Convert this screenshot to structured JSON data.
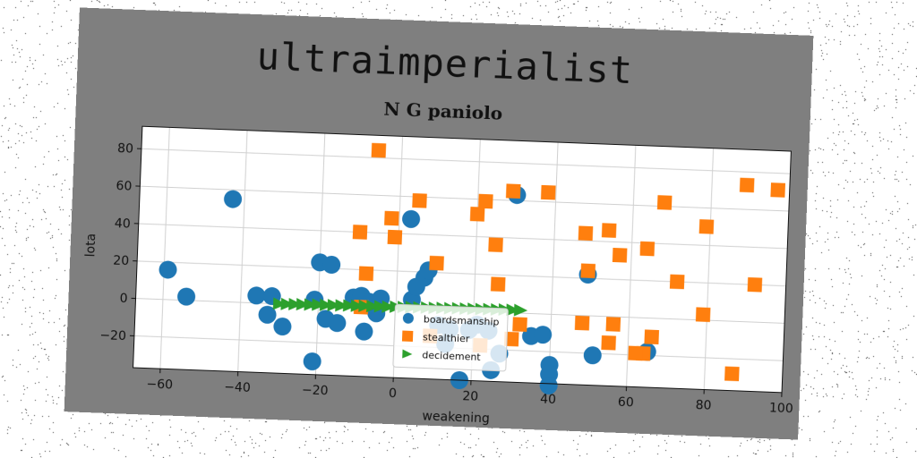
{
  "figure": {
    "title": "ultraimperialist",
    "subtitle": "N G paniolo"
  },
  "chart_data": {
    "type": "scatter",
    "xlabel": "weakening",
    "ylabel": "lota",
    "xlim": [
      -67,
      100
    ],
    "ylim": [
      -37,
      92
    ],
    "xticks": [
      -60,
      -40,
      -20,
      0,
      20,
      40,
      60,
      80,
      100
    ],
    "yticks": [
      -20,
      0,
      20,
      40,
      60,
      80
    ],
    "grid": true,
    "legend_position": "lower-center",
    "series": [
      {
        "name": "boardsmanship",
        "color": "#1f77b4",
        "marker": "circle",
        "points": [
          [
            -59,
            16
          ],
          [
            -54,
            2
          ],
          [
            -43,
            55
          ],
          [
            -36,
            4
          ],
          [
            -32,
            4
          ],
          [
            -33,
            -6
          ],
          [
            -29,
            -12
          ],
          [
            -21,
            3
          ],
          [
            -20,
            23
          ],
          [
            -17,
            22
          ],
          [
            -18,
            -7
          ],
          [
            -15,
            -9
          ],
          [
            -11,
            5
          ],
          [
            -9,
            6
          ],
          [
            -7,
            3
          ],
          [
            -8,
            -13
          ],
          [
            -5,
            -3
          ],
          [
            -4,
            5
          ],
          [
            -21,
            -30
          ],
          [
            3,
            48
          ],
          [
            4,
            5
          ],
          [
            5,
            12
          ],
          [
            7,
            17
          ],
          [
            8,
            21
          ],
          [
            11,
            -8
          ],
          [
            14,
            -10
          ],
          [
            13,
            -18
          ],
          [
            19,
            -10
          ],
          [
            21,
            -7
          ],
          [
            24,
            -10
          ],
          [
            27,
            -22
          ],
          [
            25,
            -31
          ],
          [
            17,
            -37
          ],
          [
            30,
            63
          ],
          [
            35,
            -12
          ],
          [
            38,
            -11
          ],
          [
            40,
            -27
          ],
          [
            40,
            -32
          ],
          [
            40,
            -38
          ],
          [
            49,
            22
          ],
          [
            51,
            -21
          ],
          [
            65,
            -18
          ]
        ]
      },
      {
        "name": "stealthier",
        "color": "#ff7f0e",
        "marker": "square",
        "points": [
          [
            -6,
            84
          ],
          [
            -10,
            40
          ],
          [
            -8,
            18
          ],
          [
            -9,
            0
          ],
          [
            -2,
            48
          ],
          [
            -1,
            38
          ],
          [
            5,
            58
          ],
          [
            10,
            25
          ],
          [
            9,
            -14
          ],
          [
            20,
            52
          ],
          [
            22,
            59
          ],
          [
            25,
            36
          ],
          [
            26,
            15
          ],
          [
            29,
            65
          ],
          [
            38,
            65
          ],
          [
            48,
            44
          ],
          [
            49,
            24
          ],
          [
            54,
            46
          ],
          [
            57,
            33
          ],
          [
            64,
            37
          ],
          [
            68,
            62
          ],
          [
            72,
            20
          ],
          [
            79,
            50
          ],
          [
            79,
            3
          ],
          [
            89,
            73
          ],
          [
            97,
            71
          ],
          [
            92,
            20
          ],
          [
            87,
            -28
          ],
          [
            64,
            -19
          ],
          [
            62,
            -19
          ],
          [
            66,
            -10
          ],
          [
            56,
            -4
          ],
          [
            55,
            -14
          ],
          [
            48,
            -4
          ],
          [
            32,
            -6
          ],
          [
            30,
            -14
          ],
          [
            22,
            -18
          ]
        ]
      },
      {
        "name": "decidement",
        "color": "#2ca02c",
        "marker": "triangle-right",
        "points": [
          [
            -30,
            0
          ],
          [
            -28,
            0
          ],
          [
            -26,
            0.1
          ],
          [
            -24,
            0.2
          ],
          [
            -22,
            0.2
          ],
          [
            -20,
            0.3
          ],
          [
            -18,
            0.3
          ],
          [
            -16,
            0.4
          ],
          [
            -14,
            0.4
          ],
          [
            -12,
            0.5
          ],
          [
            -10,
            0.5
          ],
          [
            -8,
            0.6
          ],
          [
            -6,
            0.6
          ],
          [
            -4,
            0.7
          ],
          [
            -2,
            0.7
          ],
          [
            0,
            0.8
          ],
          [
            2,
            0.8
          ],
          [
            4,
            0.9
          ],
          [
            6,
            0.9
          ],
          [
            8,
            1.0
          ],
          [
            10,
            1.0
          ],
          [
            12,
            1.1
          ],
          [
            14,
            1.1
          ],
          [
            16,
            1.2
          ],
          [
            18,
            1.2
          ],
          [
            20,
            1.3
          ],
          [
            22,
            1.3
          ],
          [
            24,
            1.4
          ],
          [
            26,
            1.4
          ],
          [
            28,
            1.5
          ],
          [
            30,
            1.5
          ],
          [
            32,
            1.6
          ]
        ]
      }
    ]
  }
}
